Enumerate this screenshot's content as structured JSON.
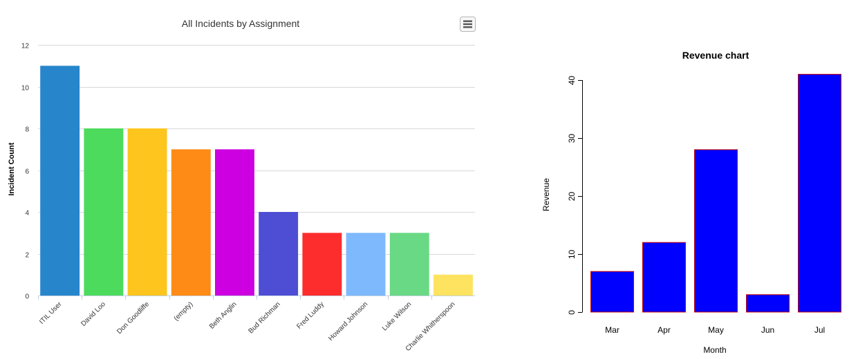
{
  "chart_data": [
    {
      "type": "bar",
      "title": "All Incidents by Assignment",
      "ylabel": "Incident Count",
      "xlabel": "",
      "categories": [
        "ITIL User",
        "David Loo",
        "Don Goodliffe",
        "(empty)",
        "Beth Anglin",
        "Bud Richman",
        "Fred Luddy",
        "Howard Johnson",
        "Luke Wilson",
        "Charlie Whitherspoon"
      ],
      "values": [
        11,
        8,
        8,
        7,
        7,
        4,
        3,
        3,
        3,
        1
      ],
      "colors": [
        "#2785cc",
        "#4cdb5c",
        "#fdc51d",
        "#fd8b16",
        "#cc00e0",
        "#4e4ed4",
        "#fd2d2d",
        "#7fb9fd",
        "#6ad985",
        "#fde360"
      ],
      "ylim": [
        0,
        12
      ],
      "yticks": [
        0,
        2,
        4,
        6,
        8,
        10,
        12
      ],
      "grid": true,
      "legend": "none"
    },
    {
      "type": "bar",
      "title": "Revenue chart",
      "xlabel": "Month",
      "ylabel": "Revenue",
      "categories": [
        "Mar",
        "Apr",
        "May",
        "Jun",
        "Jul"
      ],
      "values": [
        7,
        12,
        28,
        3,
        41
      ],
      "fill_color": "#0000ff",
      "border_color": "#cc0000",
      "yticks": [
        0,
        10,
        20,
        30,
        40
      ],
      "grid": false,
      "legend": "none"
    }
  ],
  "ui": {
    "menu_icon": "hamburger-menu-icon"
  }
}
